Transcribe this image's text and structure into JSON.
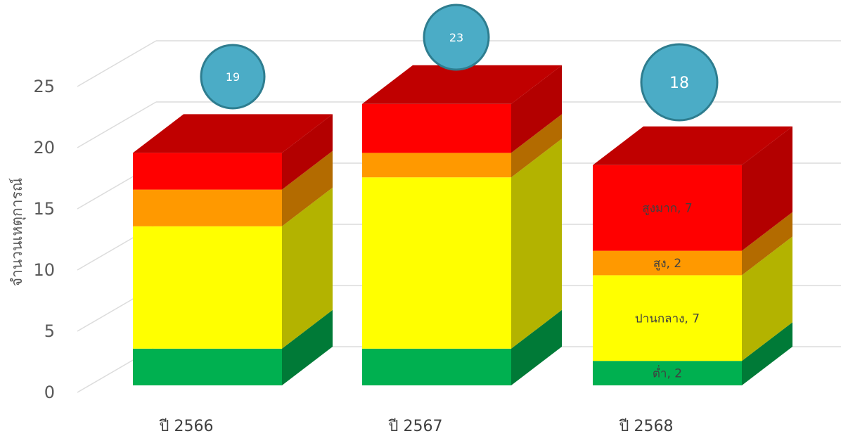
{
  "chart_data": {
    "type": "bar",
    "stacked": true,
    "three_d": true,
    "title": "",
    "xlabel": "",
    "ylabel": "จำนวนเหตุการณ์",
    "ylim": [
      0,
      25
    ],
    "yticks": [
      0,
      5,
      10,
      15,
      20,
      25
    ],
    "grid": true,
    "categories": [
      "ปี 2566",
      "ปี 2567",
      "ปี 2568"
    ],
    "series": [
      {
        "color": "#00b050",
        "side_color": "#007a37",
        "top_color": "#00994a",
        "values": [
          3,
          3,
          2
        ],
        "labels": [
          "",
          "",
          "ต่ำ, 2"
        ]
      },
      {
        "color": "#ffff00",
        "side_color": "#b3b300",
        "top_color": "#e6e600",
        "values": [
          10,
          14,
          7
        ],
        "labels": [
          "",
          "",
          "ปานกลาง, 7"
        ]
      },
      {
        "color": "#ff9900",
        "side_color": "#b36b00",
        "top_color": "#e68a00",
        "values": [
          3,
          2,
          2
        ],
        "labels": [
          "",
          "",
          "สูง, 2"
        ]
      },
      {
        "color": "#ff0000",
        "side_color": "#b30000",
        "top_color": "#c00000",
        "values": [
          3,
          4,
          7
        ],
        "labels": [
          "",
          "",
          "สูงมาก, 7"
        ]
      }
    ],
    "totals": [
      "19",
      "23",
      "18"
    ],
    "total_badge_color": "#4bacc6",
    "total_badge_border": "#2e7d8f"
  }
}
